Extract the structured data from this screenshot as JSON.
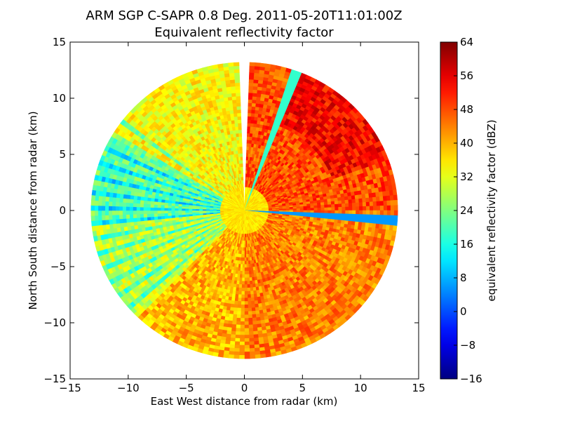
{
  "chart_data": {
    "type": "heatmap",
    "title": "ARM SGP C-SAPR 0.8 Deg. 2011-05-20T11:01:00Z",
    "subtitle": "Equivalent reflectivity factor",
    "xlabel": "East West distance from radar (km)",
    "ylabel": "North South distance from radar (km)",
    "xlim": [
      -15,
      15
    ],
    "ylim": [
      -15,
      15
    ],
    "xticks": [
      -15,
      -10,
      -5,
      0,
      5,
      10,
      15
    ],
    "yticks": [
      -15,
      -10,
      -5,
      0,
      5,
      10,
      15
    ],
    "xtick_labels": [
      "−15",
      "−10",
      "−5",
      "0",
      "5",
      "10",
      "15"
    ],
    "ytick_labels": [
      "−15",
      "−10",
      "−5",
      "0",
      "5",
      "10",
      "15"
    ],
    "max_range_km": 13.2,
    "grid": false,
    "colorbar": {
      "label": "equivalent reflectivity factor (dBZ)",
      "vmin": -16,
      "vmax": 64,
      "ticks": [
        -16,
        -8,
        0,
        8,
        16,
        24,
        32,
        40,
        48,
        56,
        64
      ],
      "tick_labels": [
        "−16",
        "−8",
        "0",
        "8",
        "16",
        "24",
        "32",
        "40",
        "48",
        "56",
        "64"
      ],
      "colormap": "jet"
    },
    "field_summary": {
      "description_regions": [
        {
          "azimuth_deg_from": 0,
          "azimuth_deg_to": 90,
          "typical_dBZ": 48
        },
        {
          "azimuth_deg_from": 90,
          "azimuth_deg_to": 180,
          "typical_dBZ": 44
        },
        {
          "azimuth_deg_from": 180,
          "azimuth_deg_to": 225,
          "typical_dBZ": 40
        },
        {
          "azimuth_deg_from": 225,
          "azimuth_deg_to": 265,
          "typical_dBZ": 30
        },
        {
          "azimuth_deg_from": 265,
          "azimuth_deg_to": 300,
          "typical_dBZ": 22
        },
        {
          "azimuth_deg_from": 300,
          "azimuth_deg_to": 360,
          "typical_dBZ": 34
        }
      ],
      "blocked_radials": [
        {
          "azimuth_deg": 0,
          "dBZ": null
        },
        {
          "azimuth_deg": 20,
          "dBZ": 18
        },
        {
          "azimuth_deg": 94,
          "dBZ": 6
        }
      ]
    }
  }
}
